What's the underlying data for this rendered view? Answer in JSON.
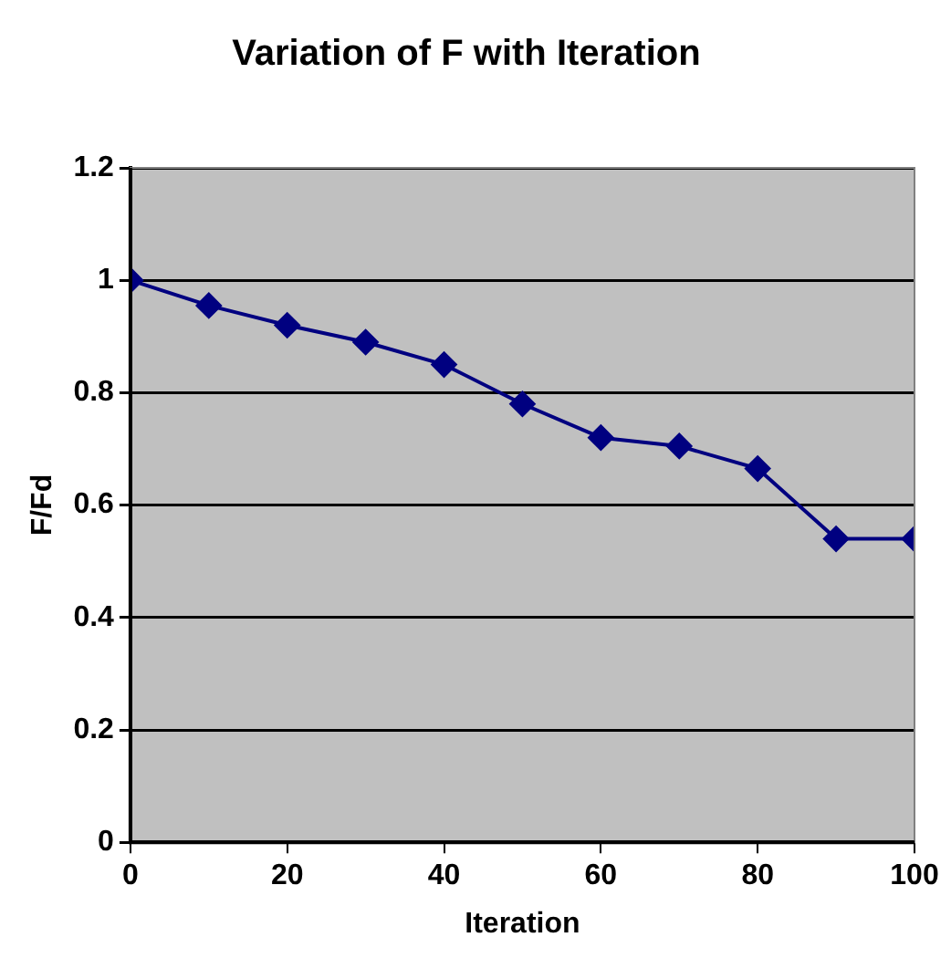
{
  "chart_data": {
    "type": "line",
    "title": "Variation of F with Iteration",
    "xlabel": "Iteration",
    "ylabel": "F/Fd",
    "x": [
      0,
      10,
      20,
      30,
      40,
      50,
      60,
      70,
      80,
      90,
      100
    ],
    "series": [
      {
        "color": "#000080",
        "values": [
          1.0,
          0.955,
          0.92,
          0.89,
          0.85,
          0.78,
          0.72,
          0.705,
          0.665,
          0.54,
          0.54
        ]
      }
    ],
    "xlim": [
      0,
      100
    ],
    "xticks": [
      0,
      20,
      40,
      60,
      80,
      100
    ],
    "ylim": [
      0,
      1.2
    ],
    "yticks": [
      0,
      0.2,
      0.4,
      0.6,
      0.8,
      1,
      1.2
    ],
    "grid": "y",
    "legend": false,
    "marker": "diamond",
    "line_style": "solid"
  }
}
